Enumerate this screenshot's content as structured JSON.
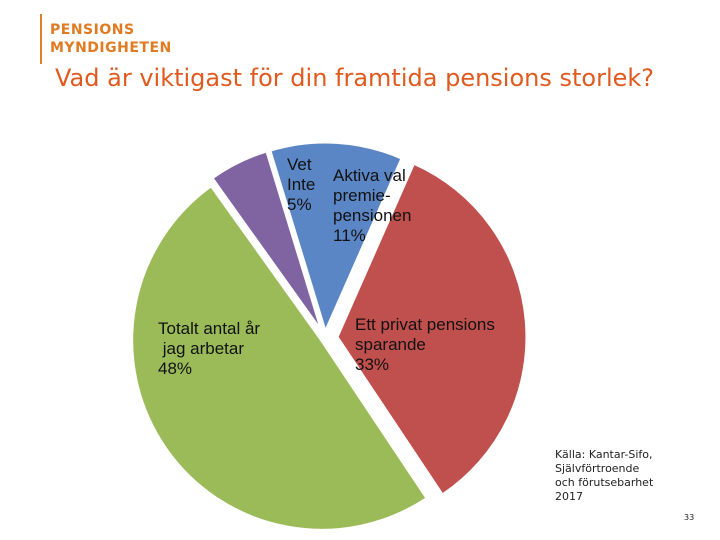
{
  "logo": {
    "line1": "PENSIONS",
    "line2": "MYNDIGHETEN"
  },
  "title": "Vad är viktigast för din framtida pensions storlek?",
  "chart_data": {
    "type": "pie",
    "title": "Vad är viktigast för din framtida pensions storlek?",
    "slices": [
      {
        "lines": [
          "Aktiva val",
          "premie-",
          "pensionen",
          "11%"
        ],
        "value": 11,
        "color": "#5b86c5"
      },
      {
        "lines": [
          "Ett privat pensions",
          "sparande",
          "33%"
        ],
        "value": 33,
        "color": "#c0504d"
      },
      {
        "lines": [
          "Totalt antal år",
          " jag arbetar",
          "48%"
        ],
        "value": 48,
        "color": "#9bbb59"
      },
      {
        "lines": [
          "Vet",
          "Inte",
          "5%"
        ],
        "value": 5,
        "color": "#8064a2"
      }
    ]
  },
  "source": [
    "Källa: Kantar-Sifo,",
    "Självförtroende",
    "och förutsebarhet",
    "2017"
  ],
  "page_number": "33"
}
